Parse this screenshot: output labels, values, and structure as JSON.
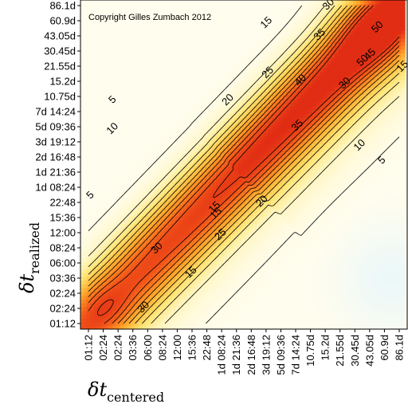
{
  "chart_data": {
    "type": "heatmap",
    "copyright": "Copyright Gilles Zumbach 2012",
    "xlabel_symbol": "δt",
    "xlabel_sub": "centered",
    "ylabel_symbol": "δt",
    "ylabel_sub": "realized",
    "ticks": [
      "01:12",
      "02:24",
      "02:24",
      "03:36",
      "06:00",
      "08:24",
      "12:00",
      "15:36",
      "22:48",
      "1d 08:24",
      "1d 21:36",
      "2d 16:48",
      "3d 19:12",
      "5d 09:36",
      "7d 14:24",
      "10.75d",
      "15.2d",
      "21.55d",
      "30.45d",
      "43.05d",
      "60.9d",
      "86.1d"
    ],
    "contour_levels": [
      5,
      10,
      15,
      20,
      25,
      30,
      35,
      40,
      45,
      50,
      55
    ],
    "contour_labels": [
      {
        "text": "5",
        "x": 1.6,
        "y": 14.8
      },
      {
        "text": "10",
        "x": 1.6,
        "y": 12.9
      },
      {
        "text": "5",
        "x": 0.1,
        "y": 8.5
      },
      {
        "text": "15",
        "x": 12.0,
        "y": 19.9
      },
      {
        "text": "25",
        "x": 12.1,
        "y": 16.6
      },
      {
        "text": "20",
        "x": 9.4,
        "y": 14.8
      },
      {
        "text": "30",
        "x": 16.2,
        "y": 21.1
      },
      {
        "text": "35",
        "x": 15.6,
        "y": 19.1
      },
      {
        "text": "40",
        "x": 14.3,
        "y": 16.1
      },
      {
        "text": "35",
        "x": 14.1,
        "y": 13.1
      },
      {
        "text": "30",
        "x": 17.3,
        "y": 15.9
      },
      {
        "text": "15",
        "x": 21.2,
        "y": 17.0
      },
      {
        "text": "10",
        "x": 18.3,
        "y": 11.8
      },
      {
        "text": "5",
        "x": 19.8,
        "y": 10.8
      },
      {
        "text": "50",
        "x": 19.5,
        "y": 19.6
      },
      {
        "text": "45",
        "x": 19.0,
        "y": 17.8
      },
      {
        "text": "50",
        "x": 18.5,
        "y": 17.4
      },
      {
        "text": "20",
        "x": 11.7,
        "y": 8.1
      },
      {
        "text": "25",
        "x": 8.9,
        "y": 5.9
      },
      {
        "text": "15",
        "x": 6.9,
        "y": 3.4
      },
      {
        "text": "30",
        "x": 4.6,
        "y": 5.0
      },
      {
        "text": "30",
        "x": 3.7,
        "y": 1.1
      },
      {
        "text": "15",
        "x": 8.6,
        "y": 7.3
      },
      {
        "text": "15",
        "x": 8.5,
        "y": 7.7
      }
    ]
  }
}
